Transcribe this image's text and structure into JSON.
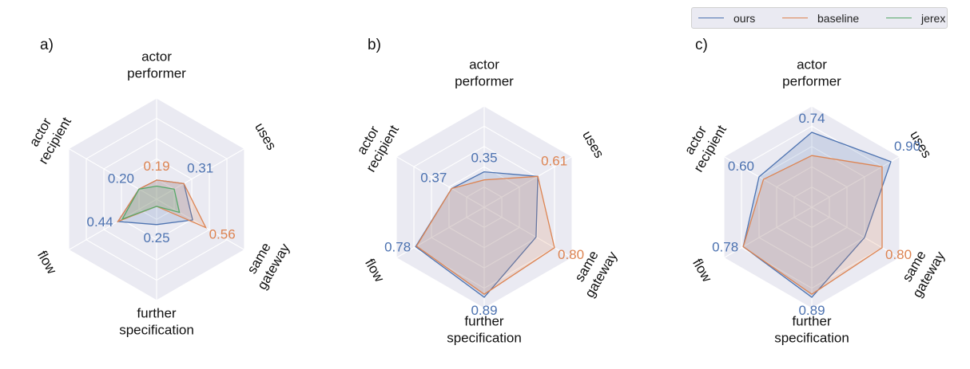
{
  "chart_data": {
    "type": "radar",
    "axes": [
      [
        "actor",
        "performer"
      ],
      [
        "uses"
      ],
      [
        "same",
        "gateway"
      ],
      [
        "further",
        "specification"
      ],
      [
        "flow"
      ],
      [
        "actor",
        "recipient"
      ]
    ],
    "rmax": 1.0,
    "rings": [
      0.2,
      0.4,
      0.6,
      0.8,
      1.0
    ],
    "grid": true,
    "legend": {
      "placement": "top-right",
      "entries": [
        {
          "name": "ours",
          "color": "#4c72b0"
        },
        {
          "name": "baseline",
          "color": "#dd8452"
        },
        {
          "name": "jerex",
          "color": "#55a868"
        }
      ]
    },
    "panels": [
      {
        "label": "a)",
        "series": [
          {
            "name": "ours",
            "color": "#4c72b0",
            "values": [
              0.19,
              0.31,
              0.41,
              0.25,
              0.44,
              0.2
            ]
          },
          {
            "name": "baseline",
            "color": "#dd8452",
            "values": [
              0.19,
              0.31,
              0.56,
              0.07,
              0.44,
              0.2
            ]
          },
          {
            "name": "jerex",
            "color": "#55a868",
            "values": [
              0.13,
              0.2,
              0.26,
              0.07,
              0.39,
              0.2
            ]
          }
        ],
        "value_labels": [
          {
            "axis": 0,
            "text": "0.19",
            "color": "#dd8452"
          },
          {
            "axis": 1,
            "text": "0.31",
            "color": "#4c72b0"
          },
          {
            "axis": 2,
            "text": "0.56",
            "color": "#dd8452"
          },
          {
            "axis": 3,
            "text": "0.25",
            "color": "#4c72b0"
          },
          {
            "axis": 4,
            "text": "0.44",
            "color": "#4c72b0"
          },
          {
            "axis": 5,
            "text": "0.20",
            "color": "#4c72b0"
          }
        ]
      },
      {
        "label": "b)",
        "series": [
          {
            "name": "ours",
            "color": "#4c72b0",
            "values": [
              0.35,
              0.61,
              0.59,
              0.89,
              0.78,
              0.37
            ]
          },
          {
            "name": "baseline",
            "color": "#dd8452",
            "values": [
              0.27,
              0.61,
              0.8,
              0.86,
              0.77,
              0.37
            ]
          }
        ],
        "value_labels": [
          {
            "axis": 0,
            "text": "0.35",
            "color": "#4c72b0"
          },
          {
            "axis": 1,
            "text": "0.61",
            "color": "#dd8452"
          },
          {
            "axis": 2,
            "text": "0.80",
            "color": "#dd8452"
          },
          {
            "axis": 3,
            "text": "0.89",
            "color": "#4c72b0"
          },
          {
            "axis": 4,
            "text": "0.78",
            "color": "#4c72b0"
          },
          {
            "axis": 5,
            "text": "0.37",
            "color": "#4c72b0"
          }
        ]
      },
      {
        "label": "c)",
        "series": [
          {
            "name": "ours",
            "color": "#4c72b0",
            "values": [
              0.74,
              0.9,
              0.6,
              0.89,
              0.78,
              0.6
            ]
          },
          {
            "name": "baseline",
            "color": "#dd8452",
            "values": [
              0.51,
              0.8,
              0.8,
              0.86,
              0.78,
              0.55
            ]
          }
        ],
        "value_labels": [
          {
            "axis": 0,
            "text": "0.74",
            "color": "#4c72b0"
          },
          {
            "axis": 1,
            "text": "0.90",
            "color": "#4c72b0"
          },
          {
            "axis": 2,
            "text": "0.80",
            "color": "#dd8452"
          },
          {
            "axis": 3,
            "text": "0.89",
            "color": "#4c72b0"
          },
          {
            "axis": 4,
            "text": "0.78",
            "color": "#4c72b0"
          },
          {
            "axis": 5,
            "text": "0.60",
            "color": "#4c72b0"
          }
        ]
      }
    ]
  }
}
